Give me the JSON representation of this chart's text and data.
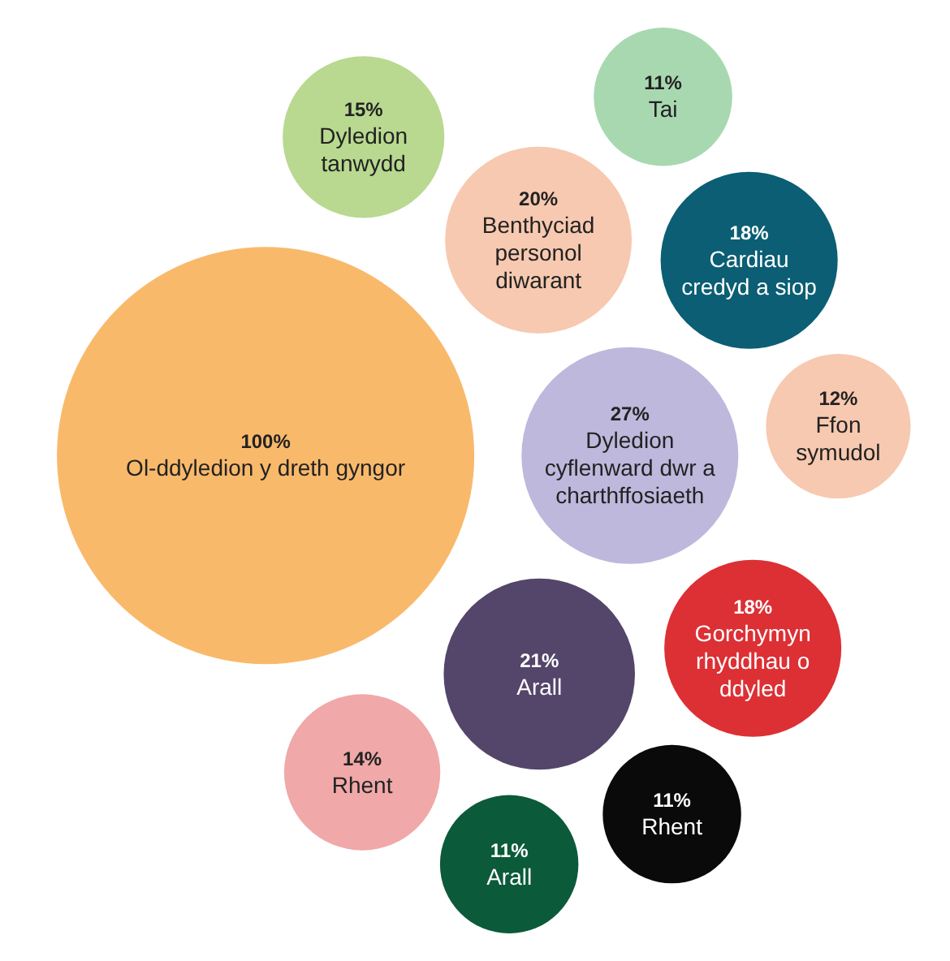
{
  "chart_data": {
    "type": "other",
    "categories": [
      "Ol-ddyledion y dreth gyngor",
      "Dyledion cyflenward dwr a charthffosiaeth",
      "Arall",
      "Benthyciad personol diwarant",
      "Cardiau credyd a siop",
      "Gorchymyn rhyddhau o ddyled",
      "Dyledion tanwydd",
      "Rhent",
      "Ffon symudol",
      "Tai",
      "Rhent",
      "Arall"
    ],
    "values": [
      100,
      27,
      21,
      20,
      18,
      18,
      15,
      14,
      12,
      11,
      11,
      11
    ],
    "value_labels": [
      "100%",
      "27%",
      "21%",
      "20%",
      "18%",
      "18%",
      "15%",
      "14%",
      "12%",
      "11%",
      "11%",
      "11%"
    ],
    "colors": [
      "#f9b96b",
      "#bdb8dc",
      "#54456a",
      "#f7c9b0",
      "#0b5e73",
      "#dc3035",
      "#b8d98f",
      "#f0a8a8",
      "#f7c9b0",
      "#a8d8b0",
      "#0a0a0a",
      "#0b5a3a"
    ]
  }
}
